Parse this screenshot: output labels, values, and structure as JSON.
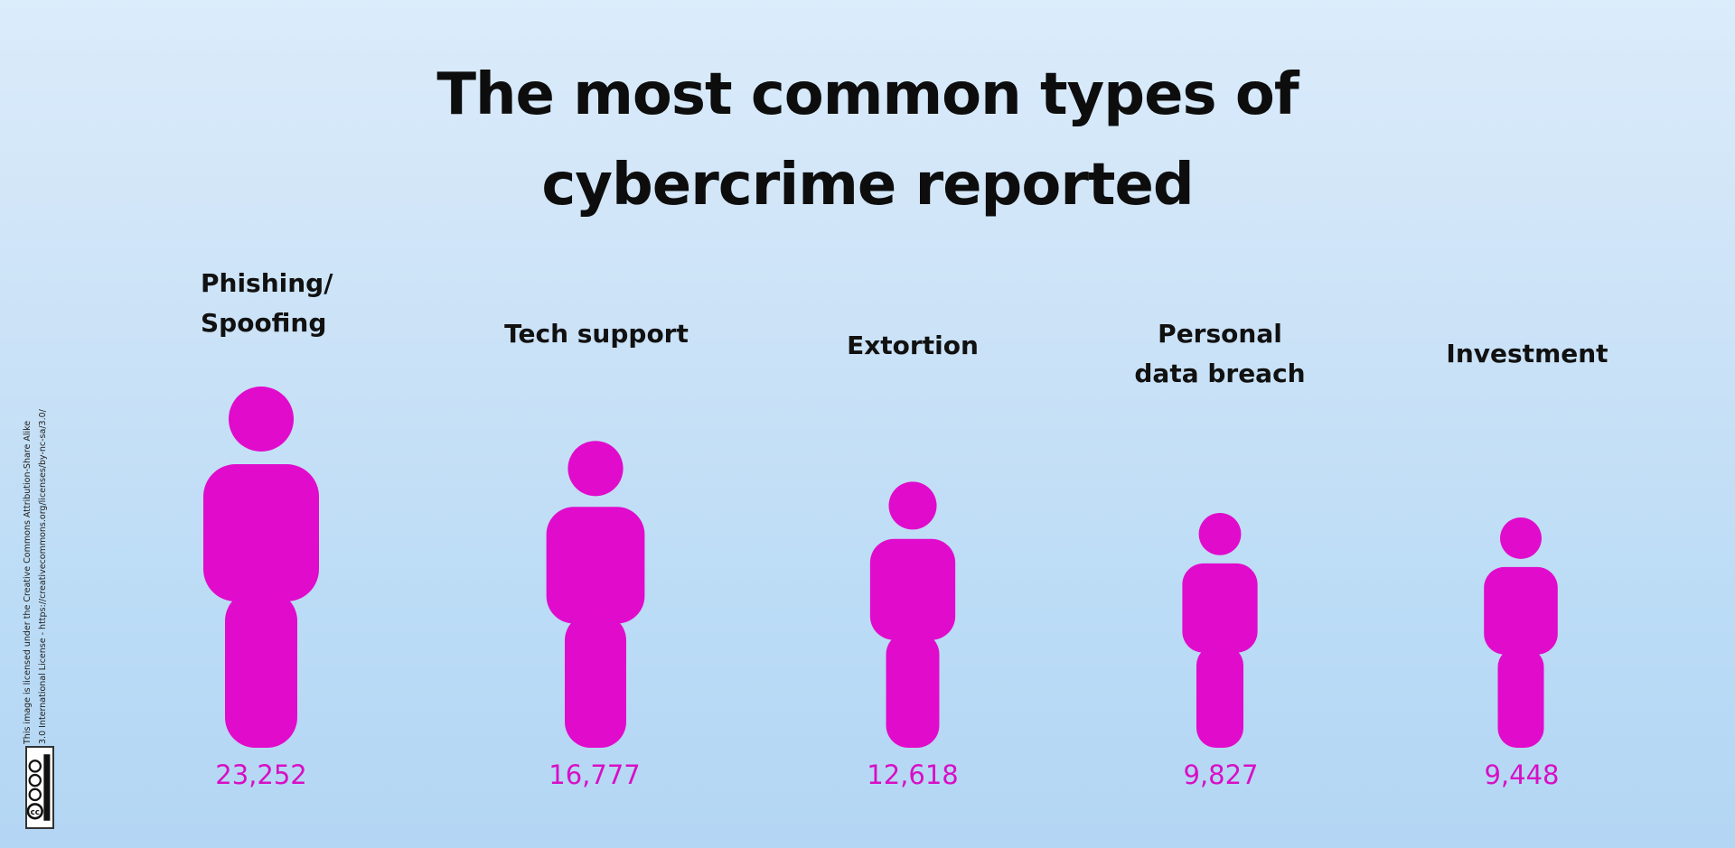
{
  "chart_data": {
    "type": "bar",
    "title": "The most common types of cybercrime reported",
    "title_lines": [
      "The most common types of",
      "cybercrime reported"
    ],
    "categories": [
      "Phishing/\nSpoofing",
      "Tech support",
      "Extortion",
      "Personal\ndata breach",
      "Investment"
    ],
    "values": [
      23252,
      16777,
      12618,
      9827,
      9448
    ],
    "value_labels": [
      "23,252",
      "16,777",
      "12,618",
      "9,827",
      "9,448"
    ],
    "colors": {
      "mark": "#e10bcc",
      "value_text": "#d70fc6",
      "title_text": "#0d0d0d"
    },
    "icon": "person-icon"
  },
  "license": {
    "text_line1": "This image is licensed under the Creative Commons Attribution-Share Alike",
    "text_line2": "3.0 International License - https://creativecommons.org/licenses/by-nc-sa/3.0/",
    "badge_icon": "cc-by-nc-sa-icon",
    "badge_text": "BY NC SA"
  }
}
